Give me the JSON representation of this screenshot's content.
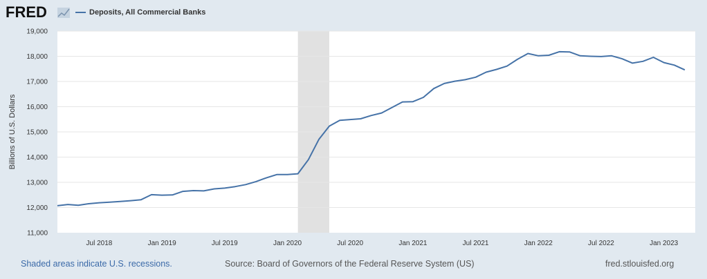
{
  "header": {
    "logo_text": "FRED",
    "logo_icon": "chart-line-icon",
    "series_name": "Deposits, All Commercial Banks"
  },
  "colors": {
    "series": "#4572a7",
    "recession": "#e1e1e1",
    "grid": "#e6e6e6",
    "background": "#e1e9f0",
    "plot": "#ffffff"
  },
  "chart_data": {
    "type": "line",
    "title": "Deposits, All Commercial Banks",
    "xlabel": "",
    "ylabel": "Billions of U.S. Dollars",
    "ylim": [
      11000,
      19000
    ],
    "xlim": [
      "2018-03",
      "2023-04"
    ],
    "yticks": [
      11000,
      12000,
      13000,
      14000,
      15000,
      16000,
      17000,
      18000,
      19000
    ],
    "ytick_labels": [
      "11,000",
      "12,000",
      "13,000",
      "14,000",
      "15,000",
      "16,000",
      "17,000",
      "18,000",
      "19,000"
    ],
    "xticks": [
      "2018-07",
      "2019-01",
      "2019-07",
      "2020-01",
      "2020-07",
      "2021-01",
      "2021-07",
      "2022-01",
      "2022-07",
      "2023-01"
    ],
    "xtick_labels": [
      "Jul 2018",
      "Jan 2019",
      "Jul 2019",
      "Jan 2020",
      "Jul 2020",
      "Jan 2021",
      "Jul 2021",
      "Jan 2022",
      "Jul 2022",
      "Jan 2023"
    ],
    "recessions": [
      [
        "2020-02",
        "2020-04"
      ]
    ],
    "series": [
      {
        "name": "Deposits, All Commercial Banks",
        "x": [
          "2018-03",
          "2018-04",
          "2018-05",
          "2018-06",
          "2018-07",
          "2018-08",
          "2018-09",
          "2018-10",
          "2018-11",
          "2018-12",
          "2019-01",
          "2019-02",
          "2019-03",
          "2019-04",
          "2019-05",
          "2019-06",
          "2019-07",
          "2019-08",
          "2019-09",
          "2019-10",
          "2019-11",
          "2019-12",
          "2020-01",
          "2020-02",
          "2020-03",
          "2020-04",
          "2020-05",
          "2020-06",
          "2020-07",
          "2020-08",
          "2020-09",
          "2020-10",
          "2020-11",
          "2020-12",
          "2021-01",
          "2021-02",
          "2021-03",
          "2021-04",
          "2021-05",
          "2021-06",
          "2021-07",
          "2021-08",
          "2021-09",
          "2021-10",
          "2021-11",
          "2021-12",
          "2022-01",
          "2022-02",
          "2022-03",
          "2022-04",
          "2022-05",
          "2022-06",
          "2022-07",
          "2022-08",
          "2022-09",
          "2022-10",
          "2022-11",
          "2022-12",
          "2023-01",
          "2023-02",
          "2023-03"
        ],
        "values": [
          12070,
          12120,
          12090,
          12150,
          12190,
          12210,
          12240,
          12270,
          12310,
          12510,
          12490,
          12500,
          12640,
          12670,
          12660,
          12740,
          12770,
          12830,
          12910,
          13030,
          13180,
          13310,
          13310,
          13340,
          13900,
          14700,
          15230,
          15460,
          15490,
          15520,
          15650,
          15750,
          15970,
          16190,
          16200,
          16370,
          16720,
          16920,
          17010,
          17070,
          17170,
          17370,
          17480,
          17610,
          17880,
          18110,
          18020,
          18040,
          18180,
          18170,
          18020,
          18000,
          17990,
          18020,
          17900,
          17730,
          17800,
          17960,
          17750,
          17650,
          17460
        ]
      }
    ]
  },
  "footer": {
    "recession_note": "Shaded areas indicate U.S. recessions.",
    "source": "Source: Board of Governors of the Federal Reserve System (US)",
    "url": "fred.stlouisfed.org"
  }
}
